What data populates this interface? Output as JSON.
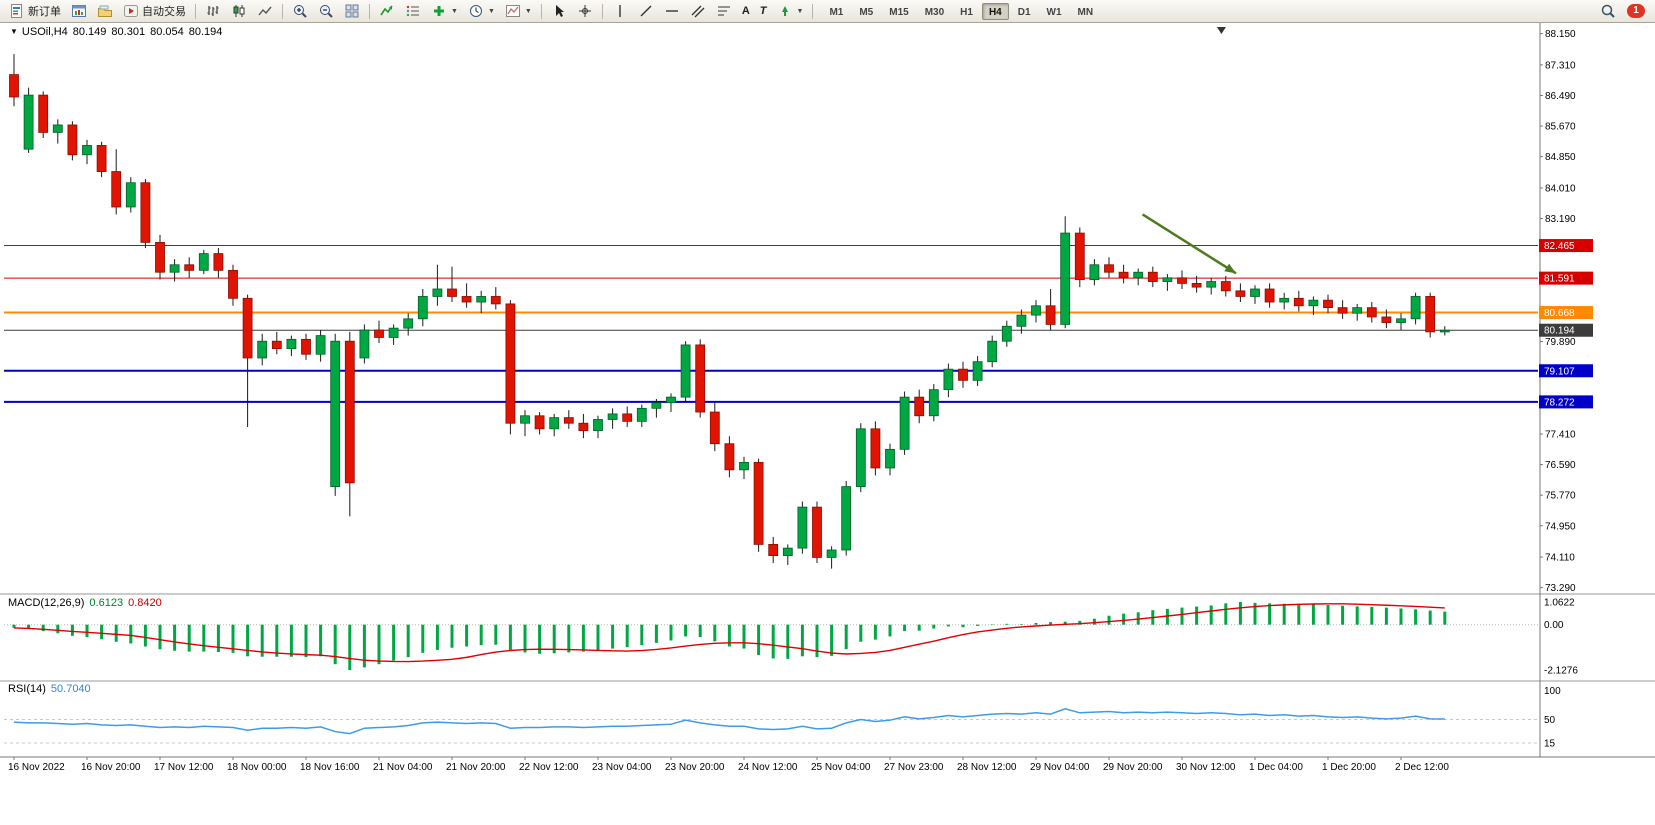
{
  "toolbar": {
    "new_order_label": "新订单",
    "autotrading_label": "自动交易",
    "text_tool_label": "A",
    "text_label_tool_label": "T",
    "timeframes": [
      "M1",
      "M5",
      "M15",
      "M30",
      "H1",
      "H4",
      "D1",
      "W1",
      "MN"
    ],
    "active_timeframe": "H4",
    "notification_count": "1"
  },
  "chart_header": {
    "symbol": "USOil,H4",
    "open": "80.149",
    "high": "80.301",
    "low": "80.054",
    "close": "80.194"
  },
  "chart_data": {
    "type": "candlestick",
    "title": "USOil,H4",
    "ylim": [
      73.2,
      88.3
    ],
    "y_ticks": [
      "88.150",
      "87.310",
      "86.490",
      "85.670",
      "84.850",
      "84.010",
      "83.190",
      "79.890",
      "77.410",
      "76.590",
      "75.770",
      "74.950",
      "74.110",
      "73.290"
    ],
    "x_labels": [
      "16 Nov 2022",
      "16 Nov 20:00",
      "17 Nov 12:00",
      "18 Nov 00:00",
      "18 Nov 16:00",
      "21 Nov 04:00",
      "21 Nov 20:00",
      "22 Nov 12:00",
      "23 Nov 04:00",
      "23 Nov 20:00",
      "24 Nov 12:00",
      "25 Nov 04:00",
      "27 Nov 23:00",
      "28 Nov 12:00",
      "29 Nov 04:00",
      "29 Nov 20:00",
      "30 Nov 12:00",
      "1 Dec 04:00",
      "1 Dec 20:00",
      "2 Dec 12:00"
    ],
    "x_label_step": 5,
    "up_color": "#00A843",
    "down_color": "#E01400",
    "candles_ohlc": [
      [
        87.05,
        87.6,
        86.2,
        86.45
      ],
      [
        85.05,
        86.7,
        84.95,
        86.5
      ],
      [
        86.5,
        86.6,
        85.35,
        85.5
      ],
      [
        85.5,
        85.85,
        85.2,
        85.7
      ],
      [
        85.7,
        85.8,
        84.75,
        84.9
      ],
      [
        84.9,
        85.3,
        84.65,
        85.15
      ],
      [
        85.15,
        85.25,
        84.3,
        84.45
      ],
      [
        84.45,
        85.05,
        83.3,
        83.5
      ],
      [
        83.5,
        84.3,
        83.35,
        84.15
      ],
      [
        84.15,
        84.25,
        82.4,
        82.55
      ],
      [
        82.55,
        82.75,
        81.55,
        81.75
      ],
      [
        81.75,
        82.1,
        81.5,
        81.95
      ],
      [
        81.95,
        82.15,
        81.6,
        81.8
      ],
      [
        81.8,
        82.35,
        81.7,
        82.25
      ],
      [
        82.25,
        82.4,
        81.6,
        81.8
      ],
      [
        81.8,
        81.95,
        80.85,
        81.05
      ],
      [
        81.05,
        81.15,
        77.6,
        79.45
      ],
      [
        79.45,
        80.1,
        79.25,
        79.9
      ],
      [
        79.9,
        80.15,
        79.55,
        79.7
      ],
      [
        79.7,
        80.05,
        79.5,
        79.95
      ],
      [
        79.95,
        80.1,
        79.4,
        79.55
      ],
      [
        79.55,
        80.2,
        79.35,
        80.05
      ],
      [
        76.0,
        80.1,
        75.75,
        79.9
      ],
      [
        79.9,
        80.15,
        75.2,
        76.1
      ],
      [
        79.45,
        80.35,
        79.3,
        80.2
      ],
      [
        80.2,
        80.45,
        79.85,
        80.0
      ],
      [
        80.0,
        80.35,
        79.8,
        80.25
      ],
      [
        80.25,
        80.65,
        80.05,
        80.5
      ],
      [
        80.5,
        81.3,
        80.3,
        81.1
      ],
      [
        81.1,
        81.95,
        80.85,
        81.3
      ],
      [
        81.3,
        81.9,
        80.95,
        81.1
      ],
      [
        81.1,
        81.45,
        80.8,
        80.95
      ],
      [
        80.95,
        81.25,
        80.65,
        81.1
      ],
      [
        81.1,
        81.35,
        80.75,
        80.9
      ],
      [
        80.9,
        81.0,
        77.4,
        77.7
      ],
      [
        77.7,
        78.05,
        77.35,
        77.9
      ],
      [
        77.9,
        78.0,
        77.4,
        77.55
      ],
      [
        77.55,
        77.95,
        77.35,
        77.85
      ],
      [
        77.85,
        78.05,
        77.55,
        77.7
      ],
      [
        77.7,
        77.95,
        77.3,
        77.5
      ],
      [
        77.5,
        77.9,
        77.3,
        77.8
      ],
      [
        77.8,
        78.1,
        77.55,
        77.95
      ],
      [
        77.95,
        78.15,
        77.6,
        77.75
      ],
      [
        77.75,
        78.2,
        77.6,
        78.1
      ],
      [
        78.1,
        78.35,
        77.85,
        78.25
      ],
      [
        78.25,
        78.5,
        78.0,
        78.4
      ],
      [
        78.4,
        79.9,
        78.25,
        79.8
      ],
      [
        79.8,
        79.95,
        77.85,
        78.0
      ],
      [
        78.0,
        78.25,
        76.95,
        77.15
      ],
      [
        77.15,
        77.35,
        76.25,
        76.45
      ],
      [
        76.45,
        76.8,
        76.2,
        76.65
      ],
      [
        76.65,
        76.75,
        74.25,
        74.45
      ],
      [
        74.45,
        74.65,
        73.95,
        74.15
      ],
      [
        74.15,
        74.45,
        73.9,
        74.35
      ],
      [
        74.35,
        75.6,
        74.2,
        75.45
      ],
      [
        75.45,
        75.6,
        73.95,
        74.1
      ],
      [
        74.1,
        74.4,
        73.8,
        74.3
      ],
      [
        74.3,
        76.15,
        74.15,
        76.0
      ],
      [
        76.0,
        77.7,
        75.85,
        77.55
      ],
      [
        77.55,
        77.75,
        76.3,
        76.5
      ],
      [
        76.5,
        77.15,
        76.3,
        77.0
      ],
      [
        77.0,
        78.55,
        76.85,
        78.4
      ],
      [
        78.4,
        78.6,
        77.7,
        77.9
      ],
      [
        77.9,
        78.75,
        77.75,
        78.6
      ],
      [
        78.6,
        79.3,
        78.4,
        79.15
      ],
      [
        79.15,
        79.35,
        78.65,
        78.85
      ],
      [
        78.85,
        79.5,
        78.7,
        79.35
      ],
      [
        79.35,
        80.05,
        79.2,
        79.9
      ],
      [
        79.9,
        80.45,
        79.75,
        80.3
      ],
      [
        80.3,
        80.75,
        80.1,
        80.6
      ],
      [
        80.6,
        81.0,
        80.4,
        80.85
      ],
      [
        80.85,
        81.3,
        80.2,
        80.35
      ],
      [
        80.35,
        83.25,
        80.25,
        82.8
      ],
      [
        82.8,
        82.95,
        81.35,
        81.55
      ],
      [
        81.55,
        82.1,
        81.4,
        81.95
      ],
      [
        81.95,
        82.15,
        81.6,
        81.75
      ],
      [
        81.75,
        81.95,
        81.45,
        81.6
      ],
      [
        81.6,
        81.85,
        81.4,
        81.75
      ],
      [
        81.75,
        81.9,
        81.35,
        81.5
      ],
      [
        81.5,
        81.7,
        81.25,
        81.6
      ],
      [
        81.6,
        81.8,
        81.3,
        81.45
      ],
      [
        81.45,
        81.65,
        81.2,
        81.35
      ],
      [
        81.35,
        81.6,
        81.15,
        81.5
      ],
      [
        81.5,
        81.65,
        81.1,
        81.25
      ],
      [
        81.25,
        81.45,
        80.95,
        81.1
      ],
      [
        81.1,
        81.4,
        80.9,
        81.3
      ],
      [
        81.3,
        81.45,
        80.8,
        80.95
      ],
      [
        80.95,
        81.2,
        80.75,
        81.05
      ],
      [
        81.05,
        81.25,
        80.7,
        80.85
      ],
      [
        80.85,
        81.1,
        80.6,
        81.0
      ],
      [
        81.0,
        81.15,
        80.65,
        80.8
      ],
      [
        80.8,
        81.0,
        80.5,
        80.65
      ],
      [
        80.65,
        80.9,
        80.45,
        80.8
      ],
      [
        80.8,
        80.95,
        80.4,
        80.55
      ],
      [
        80.55,
        80.75,
        80.25,
        80.4
      ],
      [
        80.4,
        80.65,
        80.2,
        80.5
      ],
      [
        80.5,
        81.2,
        80.35,
        81.1
      ],
      [
        81.1,
        81.2,
        80.0,
        80.15
      ],
      [
        80.149,
        80.301,
        80.054,
        80.194
      ]
    ],
    "hlines": [
      {
        "value": 82.465,
        "label": "82.465",
        "color": "#D60000",
        "width": 1
      },
      {
        "value": 81.591,
        "label": "81.591",
        "color": "#D60000",
        "width": 1
      },
      {
        "value": 80.668,
        "label": "80.668",
        "color": "#FF8A00",
        "width": 2
      },
      {
        "value": 80.194,
        "label": "80.194",
        "color": "#3C3C3C",
        "width": 1
      },
      {
        "value": 79.107,
        "label": "79.107",
        "color": "#0000C8",
        "width": 2
      },
      {
        "value": 78.272,
        "label": "78.272",
        "color": "#0000C8",
        "width": 2
      }
    ],
    "arrow_annotation": {
      "from_index": 77.3,
      "from_price": 83.3,
      "to_index": 83.7,
      "to_price": 81.72,
      "color": "#4C7A1E"
    },
    "shift_marker_index": 82.7,
    "macd": {
      "label": "MACD(12,26,9)",
      "main_value": "0.6123",
      "signal_value": "0.8420",
      "ylim": [
        -2.45,
        1.25
      ],
      "axis_labels": [
        {
          "value": 1.0622,
          "label": "1.0622"
        },
        {
          "value": 0,
          "label": "0.00"
        },
        {
          "value": -2.1276,
          "label": "-2.1276"
        }
      ],
      "hist_color": "#00A843",
      "signal_color": "#E00000",
      "histogram": [
        -0.15,
        -0.2,
        -0.3,
        -0.4,
        -0.52,
        -0.58,
        -0.68,
        -0.8,
        -0.88,
        -1.02,
        -1.15,
        -1.22,
        -1.26,
        -1.26,
        -1.28,
        -1.32,
        -1.48,
        -1.5,
        -1.5,
        -1.5,
        -1.52,
        -1.48,
        -1.85,
        -2.1276,
        -2.0,
        -1.85,
        -1.68,
        -1.52,
        -1.32,
        -1.18,
        -1.08,
        -1.02,
        -0.96,
        -0.94,
        -1.18,
        -1.3,
        -1.36,
        -1.34,
        -1.3,
        -1.26,
        -1.2,
        -1.12,
        -1.05,
        -0.96,
        -0.85,
        -0.74,
        -0.55,
        -0.58,
        -0.78,
        -1.02,
        -1.12,
        -1.42,
        -1.58,
        -1.6,
        -1.48,
        -1.52,
        -1.46,
        -1.15,
        -0.8,
        -0.7,
        -0.55,
        -0.3,
        -0.28,
        -0.18,
        -0.08,
        -0.12,
        -0.06,
        0.02,
        0.04,
        0.03,
        0.08,
        0.12,
        0.14,
        0.18,
        0.28,
        0.42,
        0.52,
        0.58,
        0.68,
        0.74,
        0.8,
        0.85,
        0.9,
        1.0,
        1.0622,
        1.02,
        1.0,
        0.98,
        0.96,
        0.95,
        0.92,
        0.89,
        0.86,
        0.83,
        0.8,
        0.76,
        0.72,
        0.66,
        0.6123
      ]
    },
    "rsi": {
      "label": "RSI(14)",
      "value": "50.7040",
      "ylim": [
        0,
        100
      ],
      "levels": [
        50,
        15
      ],
      "axis_labels": [
        {
          "value": 100,
          "label": "100"
        },
        {
          "value": 50,
          "label": "50"
        },
        {
          "value": 15,
          "label": "15"
        }
      ],
      "line_color": "#3E9BE9",
      "values": [
        46,
        45,
        45,
        44,
        43,
        44,
        42,
        41,
        42,
        40,
        38,
        39,
        38,
        40,
        39,
        38,
        34,
        37,
        37,
        38,
        37,
        39,
        32,
        29,
        37,
        38,
        39,
        41,
        45,
        46,
        45,
        44,
        45,
        44,
        37,
        38,
        38,
        39,
        39,
        38,
        39,
        40,
        40,
        41,
        42,
        43,
        49,
        45,
        42,
        40,
        40,
        36,
        35,
        36,
        40,
        36,
        37,
        45,
        50,
        47,
        49,
        54,
        51,
        53,
        56,
        54,
        56,
        58,
        59,
        58,
        60,
        58,
        66,
        60,
        61,
        62,
        60,
        61,
        60,
        61,
        60,
        59,
        60,
        59,
        57,
        58,
        56,
        57,
        55,
        56,
        54,
        53,
        54,
        52,
        51,
        52,
        55,
        51,
        50.7
      ]
    }
  }
}
